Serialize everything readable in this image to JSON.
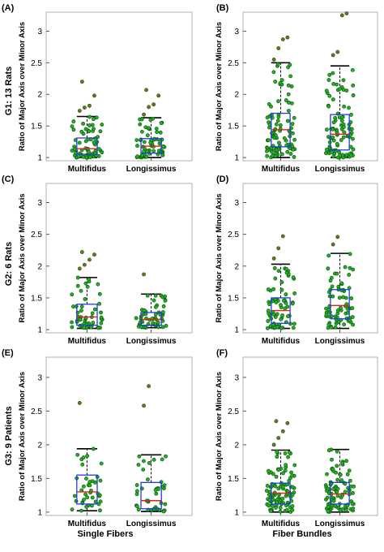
{
  "figure": {
    "row_labels": [
      "G1: 13 Rats",
      "G2: 6 Rats",
      "G3: 9 Patients"
    ],
    "column_labels": [
      "Single Fibers",
      "Fiber Bundles"
    ]
  },
  "colors": {
    "box": "#1f3fd6",
    "median": "#e02020",
    "whisker": "#000000",
    "point_fill": "#22b022",
    "point_edge": "#0a4a0a",
    "outlier": "#e02020"
  },
  "chart_data": [
    {
      "panel": "(A)",
      "type": "box",
      "ylabel": "Ratio of Major Axis over Minor Axis",
      "ylim": [
        0.95,
        3.3
      ],
      "yticks": [
        1,
        1.5,
        2,
        2.5,
        3
      ],
      "categories": [
        "Multifidus",
        "Longissimus"
      ],
      "series": [
        {
          "q1": 1.05,
          "median": 1.14,
          "q3": 1.31,
          "whisker_low": 1.0,
          "whisker_high": 1.65,
          "outliers": [
            1.74,
            1.79,
            1.82,
            1.98,
            2.2
          ],
          "n": 65
        },
        {
          "q1": 1.07,
          "median": 1.18,
          "q3": 1.3,
          "whisker_low": 1.0,
          "whisker_high": 1.63,
          "outliers": [
            1.68,
            1.8,
            1.84,
            1.98,
            2.07
          ],
          "n": 65
        }
      ]
    },
    {
      "panel": "(B)",
      "type": "box",
      "ylabel": "Ratio of Major Axis over Minor Axis",
      "ylim": [
        0.95,
        3.3
      ],
      "yticks": [
        1,
        1.5,
        2,
        2.5,
        3
      ],
      "categories": [
        "Multifidus",
        "Longissimus"
      ],
      "series": [
        {
          "q1": 1.17,
          "median": 1.44,
          "q3": 1.7,
          "whisker_low": 1.0,
          "whisker_high": 2.5,
          "outliers": [
            2.55,
            2.73,
            2.87,
            2.9
          ],
          "n": 95
        },
        {
          "q1": 1.12,
          "median": 1.37,
          "q3": 1.68,
          "whisker_low": 1.0,
          "whisker_high": 2.45,
          "outliers": [
            2.62,
            2.67,
            3.25,
            3.28
          ],
          "n": 95
        }
      ]
    },
    {
      "panel": "(C)",
      "type": "box",
      "ylabel": "Ratio of Major Axis over Minor Axis",
      "ylim": [
        0.95,
        3.3
      ],
      "yticks": [
        1,
        1.5,
        2,
        2.5,
        3
      ],
      "categories": [
        "Multifidus",
        "Longissimus"
      ],
      "series": [
        {
          "q1": 1.07,
          "median": 1.2,
          "q3": 1.4,
          "whisker_low": 1.02,
          "whisker_high": 1.82,
          "outliers": [
            1.96,
            2.02,
            2.1,
            2.18,
            2.22
          ],
          "n": 55
        },
        {
          "q1": 1.07,
          "median": 1.16,
          "q3": 1.27,
          "whisker_low": 1.03,
          "whisker_high": 1.56,
          "outliers": [
            1.87
          ],
          "n": 55
        }
      ]
    },
    {
      "panel": "(D)",
      "type": "box",
      "ylabel": "Ratio of Major Axis over Minor Axis",
      "ylim": [
        0.95,
        3.3
      ],
      "yticks": [
        1,
        1.5,
        2,
        2.5,
        3
      ],
      "categories": [
        "Multifidus",
        "Longissimus"
      ],
      "series": [
        {
          "q1": 1.1,
          "median": 1.3,
          "q3": 1.5,
          "whisker_low": 1.02,
          "whisker_high": 2.03,
          "outliers": [
            2.12,
            2.28,
            2.47
          ],
          "n": 70
        },
        {
          "q1": 1.17,
          "median": 1.38,
          "q3": 1.63,
          "whisker_low": 1.02,
          "whisker_high": 2.2,
          "outliers": [
            2.34,
            2.46
          ],
          "n": 70
        }
      ]
    },
    {
      "panel": "(E)",
      "type": "box",
      "ylabel": "Ratio of Major Axis over Minor Axis",
      "ylim": [
        0.95,
        3.3
      ],
      "yticks": [
        1,
        1.5,
        2,
        2.5,
        3
      ],
      "categories": [
        "Multifidus",
        "Longissimus"
      ],
      "series": [
        {
          "q1": 1.12,
          "median": 1.3,
          "q3": 1.55,
          "whisker_low": 1.02,
          "whisker_high": 1.94,
          "outliers": [
            2.62
          ],
          "n": 40
        },
        {
          "q1": 1.05,
          "median": 1.17,
          "q3": 1.44,
          "whisker_low": 1.01,
          "whisker_high": 1.85,
          "outliers": [
            2.58,
            2.87
          ],
          "n": 40
        }
      ]
    },
    {
      "panel": "(F)",
      "type": "box",
      "ylabel": "Ratio of Major Axis over Minor Axis",
      "ylim": [
        0.95,
        3.3
      ],
      "yticks": [
        1,
        1.5,
        2,
        2.5,
        3
      ],
      "categories": [
        "Multifidus",
        "Longissimus"
      ],
      "series": [
        {
          "q1": 1.12,
          "median": 1.28,
          "q3": 1.43,
          "whisker_low": 1.0,
          "whisker_high": 1.92,
          "outliers": [
            2.0,
            2.1,
            2.2,
            2.32,
            2.35
          ],
          "n": 100
        },
        {
          "q1": 1.12,
          "median": 1.27,
          "q3": 1.44,
          "whisker_low": 1.0,
          "whisker_high": 1.93,
          "outliers": [],
          "n": 90
        }
      ]
    }
  ]
}
